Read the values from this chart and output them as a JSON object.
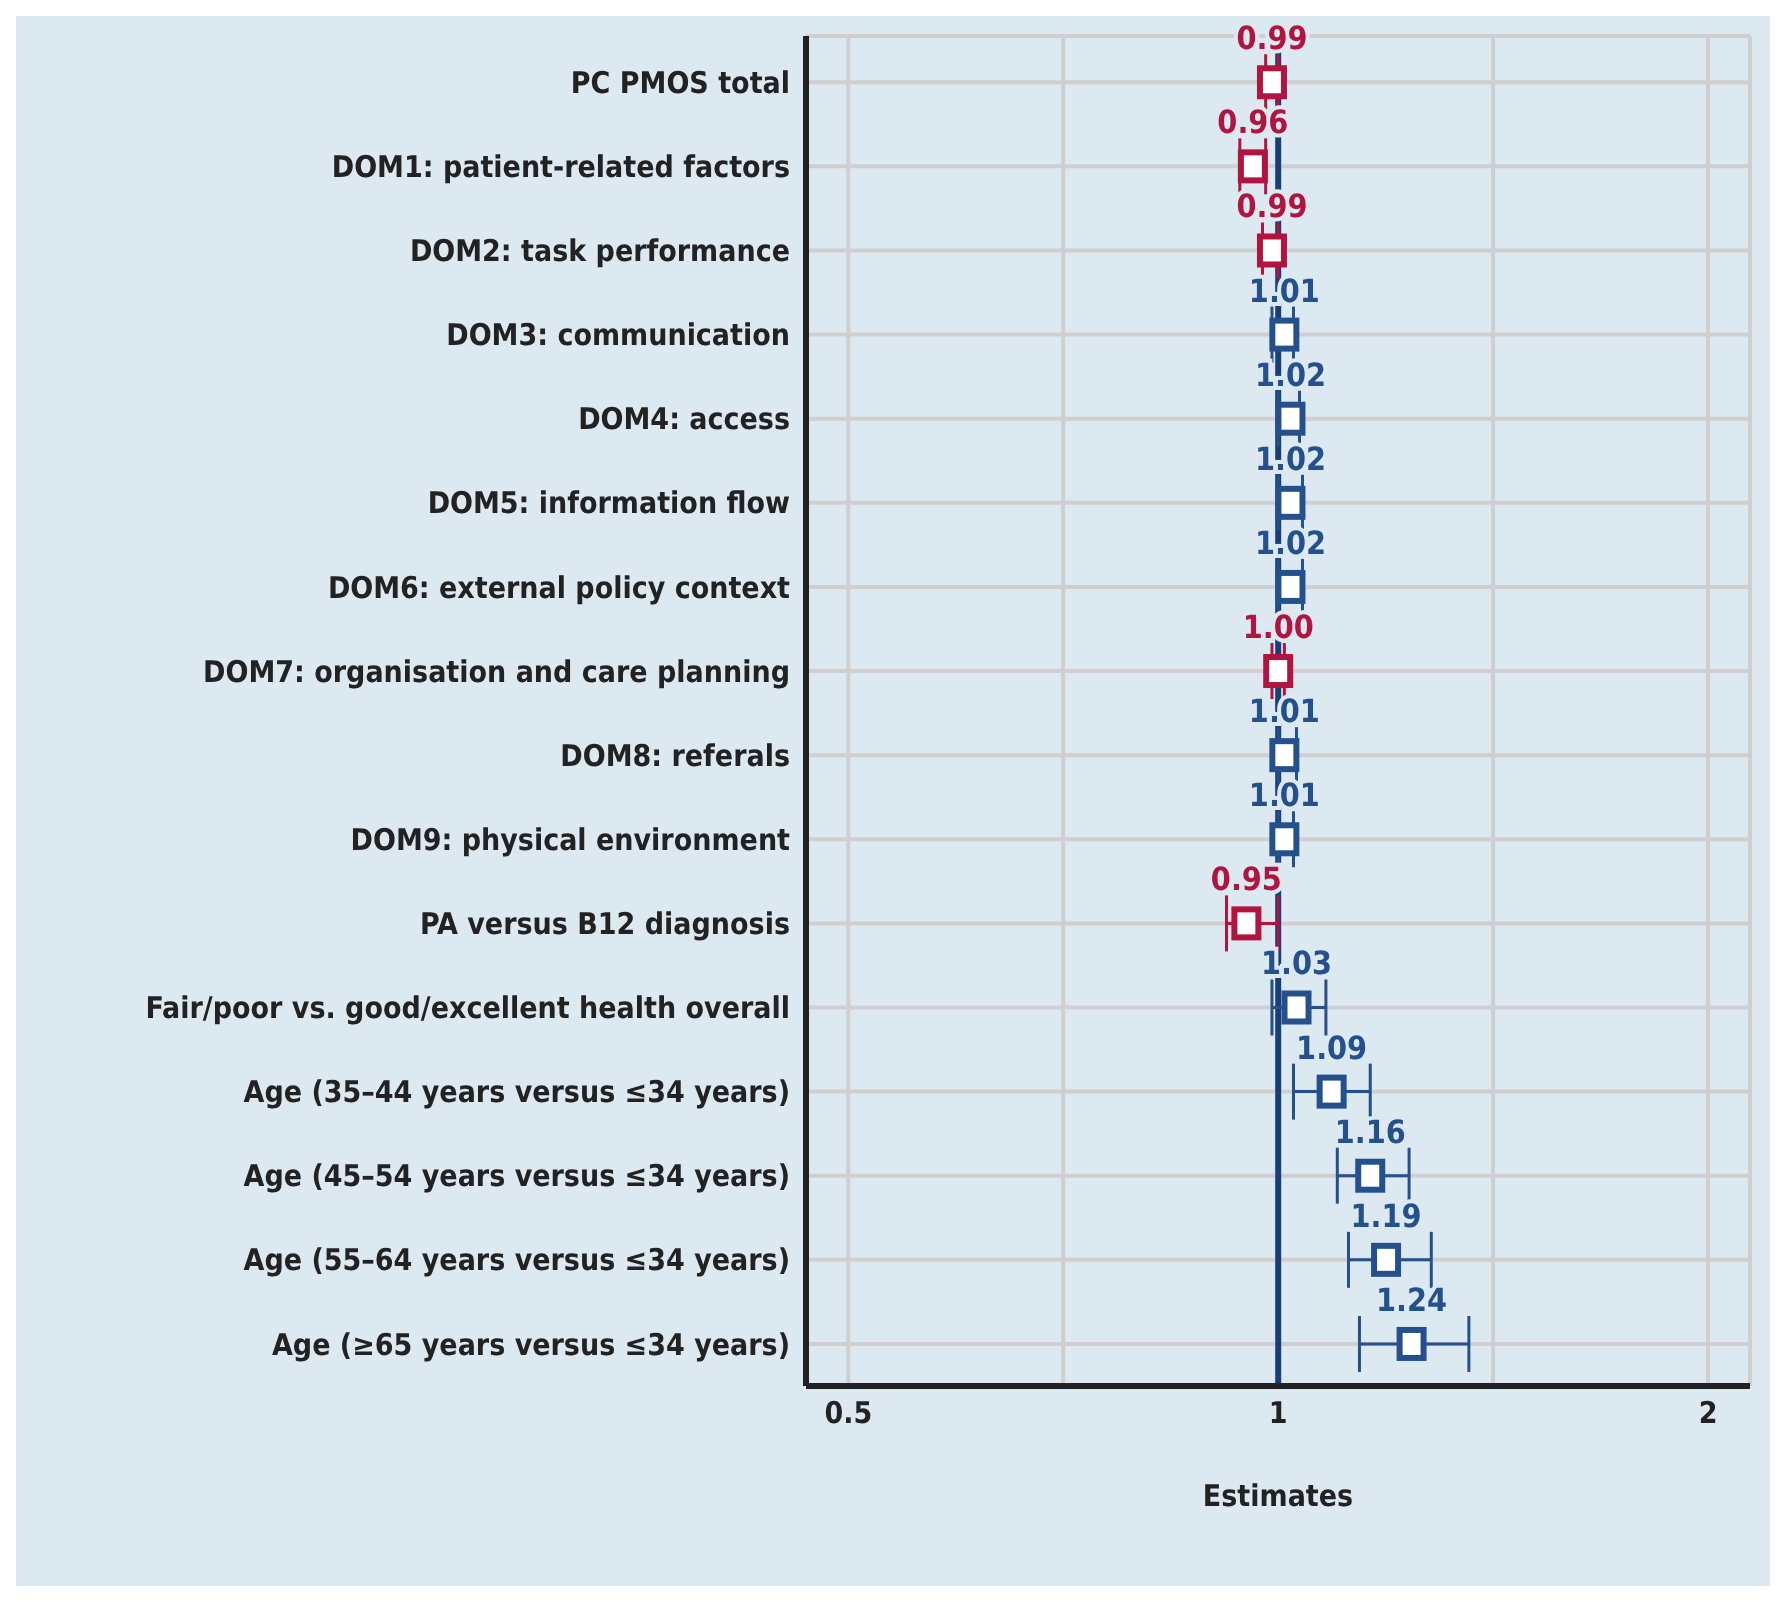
{
  "chart_data": {
    "type": "scatter",
    "orientation": "horizontal",
    "xlabel": "Estimates",
    "categories": [
      "PC PMOS total",
      "DOM1: patient-related factors",
      "DOM2: task performance",
      "DOM3: communication",
      "DOM4: access",
      "DOM5: information flow",
      "DOM6: external policy context",
      "DOM7: organisation and care planning",
      "DOM8: referals",
      "DOM9: physical environment",
      "PA versus B12 diagnosis",
      "Fair/poor vs. good/excellent health overall",
      "Age (35–44 years versus ≤34 years)",
      "Age (45–54 years versus ≤34 years)",
      "Age (55–64 years versus ≤34 years)",
      "Age (≥65 years versus ≤34 years)"
    ],
    "values": [
      0.99,
      0.96,
      0.99,
      1.01,
      1.02,
      1.02,
      1.02,
      1.0,
      1.01,
      1.01,
      0.95,
      1.03,
      1.09,
      1.16,
      1.19,
      1.24
    ],
    "value_labels": [
      "0.99",
      "0.96",
      "0.99",
      "1.01",
      "1.02",
      "1.02",
      "1.02",
      "1.00",
      "1.01",
      "1.01",
      "0.95",
      "1.03",
      "1.09",
      "1.16",
      "1.19",
      "1.24"
    ],
    "errors": [
      [
        0.98,
        1.0
      ],
      [
        0.94,
        0.98
      ],
      [
        0.975,
        1.0
      ],
      [
        0.99,
        1.025
      ],
      [
        1.0,
        1.035
      ],
      [
        1.0,
        1.04
      ],
      [
        1.0,
        1.04
      ],
      [
        0.99,
        1.01
      ],
      [
        1.0,
        1.03
      ],
      [
        1.0,
        1.025
      ],
      [
        0.92,
        1.0
      ],
      [
        0.99,
        1.08
      ],
      [
        1.025,
        1.16
      ],
      [
        1.1,
        1.235
      ],
      [
        1.12,
        1.28
      ],
      [
        1.14,
        1.36
      ]
    ],
    "colors": [
      "#b0143f",
      "#b0143f",
      "#b0143f",
      "#24508c",
      "#24508c",
      "#24508c",
      "#24508c",
      "#b0143f",
      "#24508c",
      "#24508c",
      "#b0143f",
      "#24508c",
      "#24508c",
      "#24508c",
      "#24508c",
      "#24508c"
    ],
    "log": "x",
    "xlim": [
      0.467,
      2.14
    ],
    "xticks": [
      0.5,
      {
        "value": 0.707,
        "label": null
      },
      1,
      {
        "value": 1.414,
        "label": null
      },
      2
    ],
    "ref_lines": [
      {
        "axis": "x",
        "value": 1,
        "color": "#1a3f78"
      }
    ],
    "grid": true,
    "marker": "square"
  }
}
